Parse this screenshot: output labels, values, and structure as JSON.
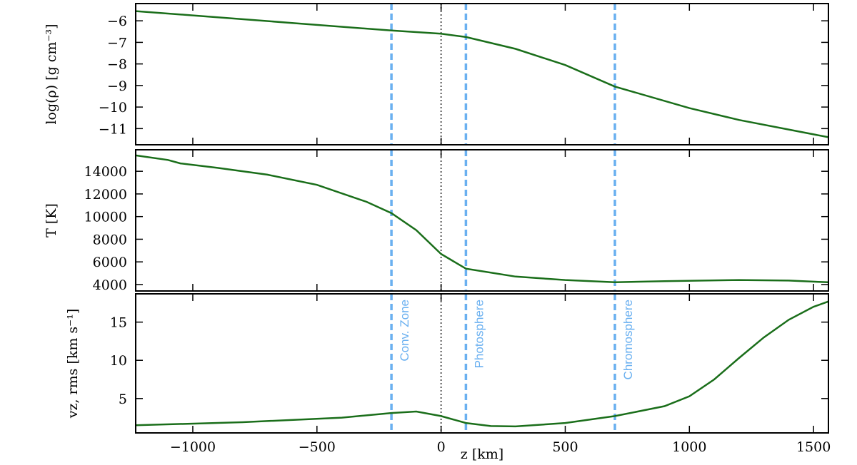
{
  "chart_data": [
    {
      "type": "line",
      "ylabel": "log(ρ) [g cm⁻³]",
      "color": "#1a6e1a",
      "x": [
        -1230,
        -1000,
        -600,
        -200,
        0,
        100,
        300,
        500,
        700,
        1000,
        1200,
        1560
      ],
      "values": [
        -5.55,
        -5.75,
        -6.1,
        -6.45,
        -6.6,
        -6.75,
        -7.3,
        -8.05,
        -9.05,
        -10.05,
        -10.6,
        -11.4
      ],
      "xlim": [
        -1230,
        1560
      ],
      "ylim": [
        -11.75,
        -5.2
      ],
      "yticks": [
        {
          "value": -11,
          "label": "−11"
        },
        {
          "value": -10,
          "label": "−10"
        },
        {
          "value": -9,
          "label": "−9"
        },
        {
          "value": -8,
          "label": "−8"
        },
        {
          "value": -7,
          "label": "−7"
        },
        {
          "value": -6,
          "label": "−6"
        }
      ],
      "vlines": [
        -200,
        100,
        700
      ],
      "vline_color": "#6ab0f0",
      "dotted_vline": 0
    },
    {
      "type": "line",
      "ylabel": "T [K]",
      "color": "#1a6e1a",
      "x": [
        -1230,
        -1100,
        -1050,
        -900,
        -700,
        -500,
        -300,
        -200,
        -100,
        0,
        100,
        300,
        500,
        700,
        900,
        1200,
        1400,
        1560
      ],
      "values": [
        15400,
        15000,
        14700,
        14300,
        13700,
        12800,
        11300,
        10300,
        8800,
        6700,
        5400,
        4700,
        4400,
        4200,
        4300,
        4400,
        4350,
        4200
      ],
      "xlim": [
        -1230,
        1560
      ],
      "ylim": [
        3430,
        15900
      ],
      "yticks": [
        4000,
        6000,
        8000,
        10000,
        12000,
        14000
      ],
      "vlines": [
        -200,
        100,
        700
      ],
      "vline_color": "#6ab0f0",
      "dotted_vline": 0
    },
    {
      "type": "line",
      "ylabel": "vz, rms [km s⁻¹]",
      "xlabel": "z  [km]",
      "color": "#1a6e1a",
      "x": [
        -1230,
        -800,
        -400,
        -200,
        -100,
        0,
        100,
        200,
        300,
        500,
        700,
        900,
        1000,
        1100,
        1200,
        1300,
        1400,
        1500,
        1560
      ],
      "values": [
        1.5,
        1.9,
        2.5,
        3.1,
        3.3,
        2.7,
        1.8,
        1.4,
        1.35,
        1.8,
        2.7,
        4.0,
        5.3,
        7.5,
        10.3,
        13.0,
        15.3,
        17.0,
        17.7
      ],
      "xlim": [
        -1230,
        1560
      ],
      "ylim": [
        0.5,
        18.7
      ],
      "yticks": [
        5,
        10,
        15
      ],
      "xticks": [
        {
          "value": -1000,
          "label": "−1000"
        },
        {
          "value": -500,
          "label": "−500"
        },
        0,
        500,
        1000,
        1500
      ],
      "vlines": [
        -200,
        100,
        700
      ],
      "vline_color": "#6ab0f0",
      "dotted_vline": 0,
      "annotations": [
        "Conv. Zone",
        "Photosphere",
        "Chromosphere"
      ]
    }
  ]
}
